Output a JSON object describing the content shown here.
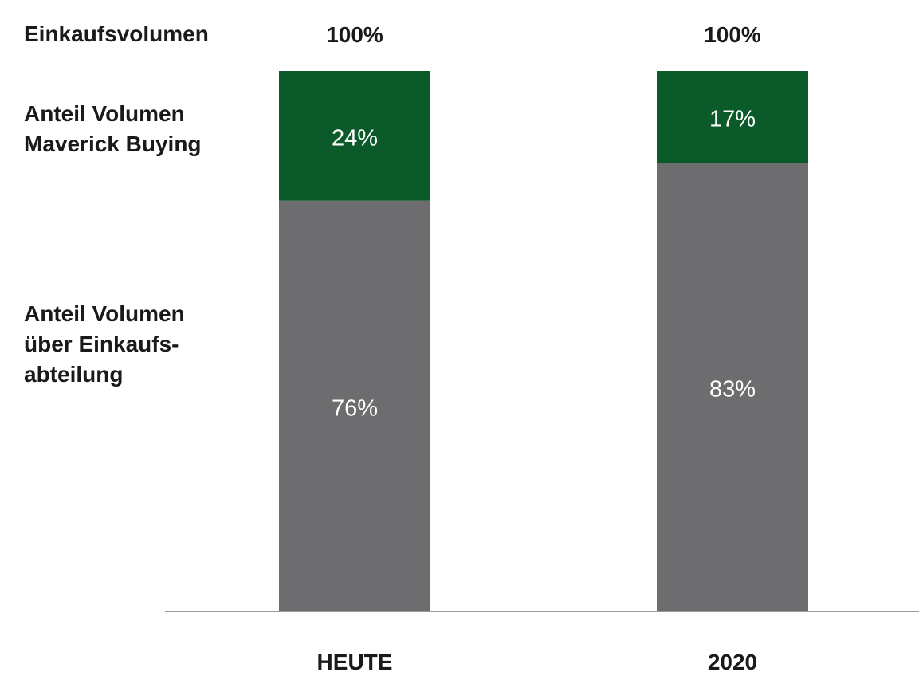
{
  "chart_data": {
    "type": "bar",
    "stacked": true,
    "categories": [
      "HEUTE",
      "2020"
    ],
    "series": [
      {
        "name": "Anteil Volumen über Einkaufs-abteilung",
        "values": [
          76,
          83
        ],
        "labels": [
          "76%",
          "83%"
        ],
        "color": "#6d6d70"
      },
      {
        "name": "Anteil Volumen Maverick Buying",
        "values": [
          24,
          17
        ],
        "labels": [
          "24%",
          "17%"
        ],
        "color": "#0b5a2a"
      }
    ],
    "totals": [
      "100%",
      "100%"
    ],
    "ylim": [
      0,
      100
    ],
    "grid": false,
    "legend": "left"
  },
  "row_labels": {
    "total": "Einkaufsvolumen",
    "maverick": "Anteil Volumen\nMaverick Buying",
    "purchasing": "Anteil Volumen\nüber Einkaufs-\nabteilung"
  }
}
